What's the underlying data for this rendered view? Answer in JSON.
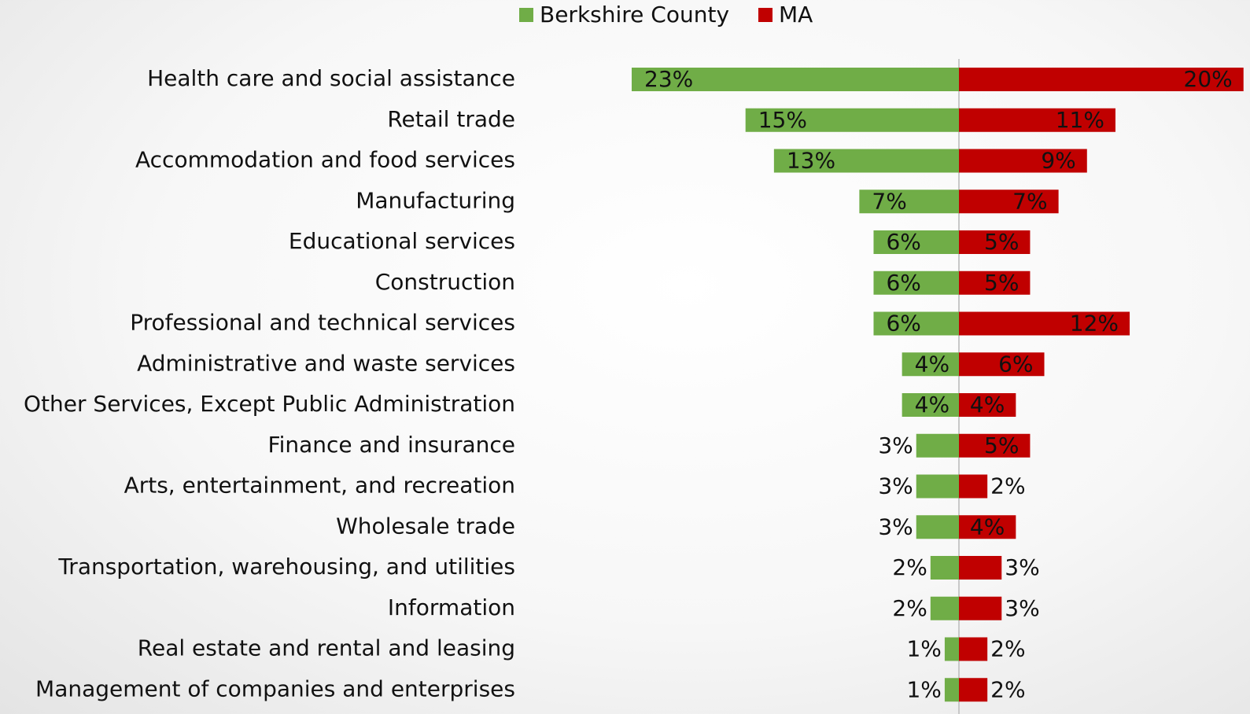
{
  "chart_data": {
    "type": "butterfly",
    "categories": [
      "Health care and social assistance",
      "Retail trade",
      "Accommodation and food services",
      "Manufacturing",
      "Educational services",
      "Construction",
      "Professional and technical services",
      "Administrative and waste services",
      "Other Services, Except Public Administration",
      "Finance and insurance",
      "Arts, entertainment, and recreation",
      "Wholesale trade",
      "Transportation, warehousing, and utilities",
      "Information",
      "Real estate and rental and leasing",
      "Management of companies and enterprises"
    ],
    "series": [
      {
        "name": "Berkshire County",
        "color": "#70ad47",
        "side": "left",
        "values": [
          23,
          15,
          13,
          7,
          6,
          6,
          6,
          4,
          4,
          3,
          3,
          3,
          2,
          2,
          1,
          1
        ],
        "value_labels": [
          "23%",
          "15%",
          "13%",
          "7%",
          "6%",
          "6%",
          "6%",
          "4%",
          "4%",
          "3%",
          "3%",
          "3%",
          "2%",
          "2%",
          "1%",
          "1%"
        ]
      },
      {
        "name": "MA",
        "color": "#c00000",
        "side": "right",
        "values": [
          20,
          11,
          9,
          7,
          5,
          5,
          12,
          6,
          4,
          5,
          2,
          4,
          3,
          3,
          2,
          2
        ],
        "value_labels": [
          "20%",
          "11%",
          "9%",
          "7%",
          "5%",
          "5%",
          "12%",
          "6%",
          "4%",
          "5%",
          "2%",
          "4%",
          "3%",
          "3%",
          "2%",
          "2%"
        ]
      }
    ],
    "xlim": [
      0,
      23
    ]
  }
}
